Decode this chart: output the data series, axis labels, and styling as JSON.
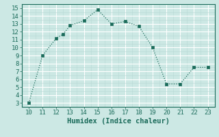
{
  "x": [
    10,
    11,
    12,
    12.5,
    13,
    14,
    15,
    16,
    17,
    18,
    19,
    20,
    21,
    22,
    23
  ],
  "y": [
    3,
    9,
    11.2,
    11.7,
    12.8,
    13.4,
    14.8,
    13.0,
    13.3,
    12.7,
    10.0,
    5.4,
    5.4,
    7.5,
    7.5
  ],
  "line_color": "#1a6b5a",
  "marker_color": "#1a6b5a",
  "bg_color": "#cce8e4",
  "grid_major_color": "#ffffff",
  "grid_minor_color": "#b8d8d4",
  "xlabel": "Humidex (Indice chaleur)",
  "xlim": [
    9.5,
    23.5
  ],
  "ylim": [
    2.5,
    15.5
  ],
  "xticks": [
    10,
    11,
    12,
    13,
    14,
    15,
    16,
    17,
    18,
    19,
    20,
    21,
    22,
    23
  ],
  "yticks": [
    3,
    4,
    5,
    6,
    7,
    8,
    9,
    10,
    11,
    12,
    13,
    14,
    15
  ],
  "xlabel_fontsize": 7.5,
  "tick_fontsize": 6.5
}
